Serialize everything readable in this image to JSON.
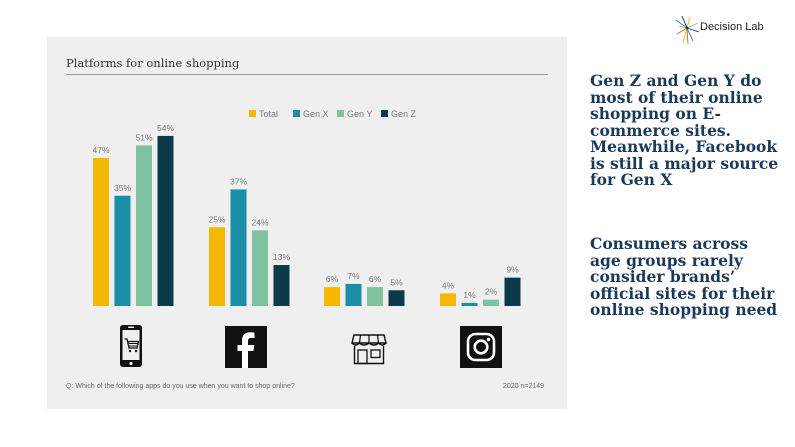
{
  "brand": {
    "name": "Decision Lab"
  },
  "headlines": {
    "first": "Gen Z and Gen Y do most of their online shopping on E-commerce sites. Meanwhile, Facebook is still a major source for Gen X",
    "second": "Consumers across age groups rarely consider brands’ official sites for their online shopping need"
  },
  "footnote": {
    "question": "Q: Which of the following apps do you use when you want to shop online?",
    "source": "2020  n=2149"
  },
  "colors": {
    "total": "#f5b800",
    "gen_x": "#1a8ea6",
    "gen_y": "#7ec29f",
    "gen_z": "#0d3a4a",
    "headline": "#1a3a5a"
  },
  "chart_data": {
    "type": "bar",
    "title": "Platforms for online shopping",
    "categories": [
      "e-commerce-app-icon",
      "facebook-icon",
      "shop-icon",
      "instagram-icon"
    ],
    "series": [
      {
        "name": "Total",
        "color": "#f5b800",
        "values": [
          47,
          25,
          6,
          4
        ]
      },
      {
        "name": "Gen X",
        "color": "#1a8ea6",
        "values": [
          35,
          37,
          7,
          1
        ]
      },
      {
        "name": "Gen Y",
        "color": "#7ec29f",
        "values": [
          51,
          24,
          6,
          2
        ]
      },
      {
        "name": "Gen Z",
        "color": "#0d3a4a",
        "values": [
          54,
          13,
          5,
          9
        ]
      }
    ],
    "value_suffix": "%",
    "ylim": [
      0,
      60
    ],
    "grid": false,
    "legend_position": "top-center"
  }
}
